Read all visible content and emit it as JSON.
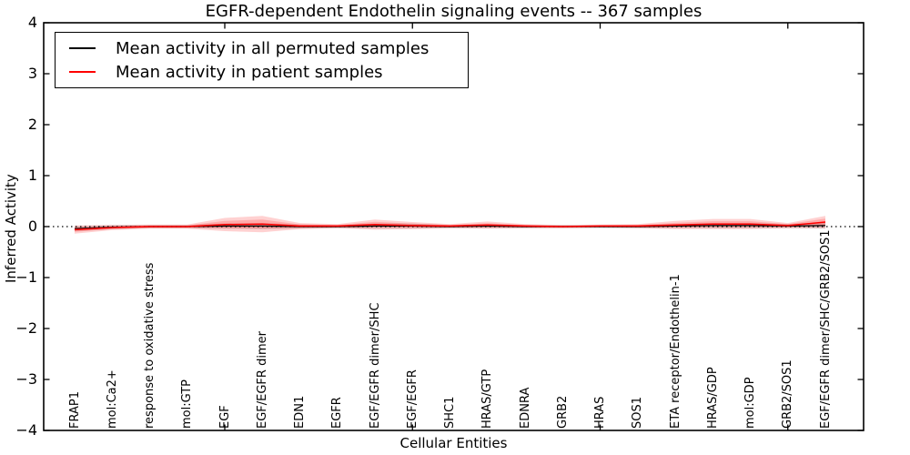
{
  "figure": {
    "title": "EGFR-dependent Endothelin signaling events -- 367 samples",
    "xlabel": "Cellular Entities",
    "ylabel": "Inferred Activity"
  },
  "legend": {
    "items": [
      {
        "label": "Mean activity in all permuted samples",
        "color": "#000000"
      },
      {
        "label": "Mean activity in patient samples",
        "color": "#ff0000"
      }
    ]
  },
  "chart_data": {
    "type": "line",
    "title": "EGFR-dependent Endothelin signaling events -- 367 samples",
    "xlabel": "Cellular Entities",
    "ylabel": "Inferred Activity",
    "ylim": [
      -4,
      4
    ],
    "ytick_labels": [
      "4",
      "3",
      "2",
      "1",
      "0",
      "−1",
      "−2",
      "−3",
      "−4"
    ],
    "ytick_values": [
      4,
      3,
      2,
      1,
      0,
      -1,
      -2,
      -3,
      -4
    ],
    "xtick_category_indices": [
      4,
      9,
      14,
      19
    ],
    "grid": false,
    "legend_position": "upper left",
    "zero_line": {
      "y": 0,
      "style": "dotted",
      "color": "#000000"
    },
    "categories": [
      "FRAP1",
      "mol:Ca2+",
      "response to oxidative stress",
      "mol:GTP",
      "EGF",
      "EGF/EGFR dimer",
      "EDN1",
      "EGFR",
      "EGF/EGFR dimer/SHC",
      "EGF/EGFR",
      "SHC1",
      "HRAS/GTP",
      "EDNRA",
      "GRB2",
      "HRAS",
      "SOS1",
      "ETA receptor/Endothelin-1",
      "HRAS/GDP",
      "mol:GDP",
      "GRB2/SOS1",
      "EGF/EGFR dimer/SHC/GRB2/SOS1"
    ],
    "series": [
      {
        "name": "Mean activity in all permuted samples",
        "color": "#000000",
        "line_width": 1.2,
        "band_color": "rgba(0,0,0,0.14)",
        "values": [
          -0.04,
          -0.01,
          0,
          0,
          0.01,
          0.01,
          0,
          0,
          0.01,
          0.01,
          0,
          0.01,
          0,
          0,
          0,
          0,
          0.01,
          0.02,
          0.02,
          0.01,
          0.02
        ],
        "band_halfwidth": [
          0.05,
          0.04,
          0.03,
          0.03,
          0.05,
          0.06,
          0.04,
          0.03,
          0.05,
          0.05,
          0.03,
          0.04,
          0.03,
          0.03,
          0.03,
          0.03,
          0.04,
          0.05,
          0.05,
          0.04,
          0.06
        ]
      },
      {
        "name": "Mean activity in patient samples",
        "color": "#ff0000",
        "line_width": 1.5,
        "band_color": "rgba(255,0,0,0.18)",
        "values": [
          -0.06,
          -0.02,
          0,
          0,
          0.04,
          0.05,
          0.01,
          0.01,
          0.04,
          0.02,
          0.01,
          0.03,
          0.01,
          0,
          0.01,
          0.01,
          0.03,
          0.05,
          0.05,
          0.02,
          0.09
        ],
        "band_halfwidth": [
          0.08,
          0.05,
          0.04,
          0.04,
          0.13,
          0.16,
          0.06,
          0.04,
          0.1,
          0.07,
          0.04,
          0.07,
          0.04,
          0.03,
          0.03,
          0.04,
          0.08,
          0.1,
          0.1,
          0.05,
          0.12
        ]
      }
    ]
  }
}
